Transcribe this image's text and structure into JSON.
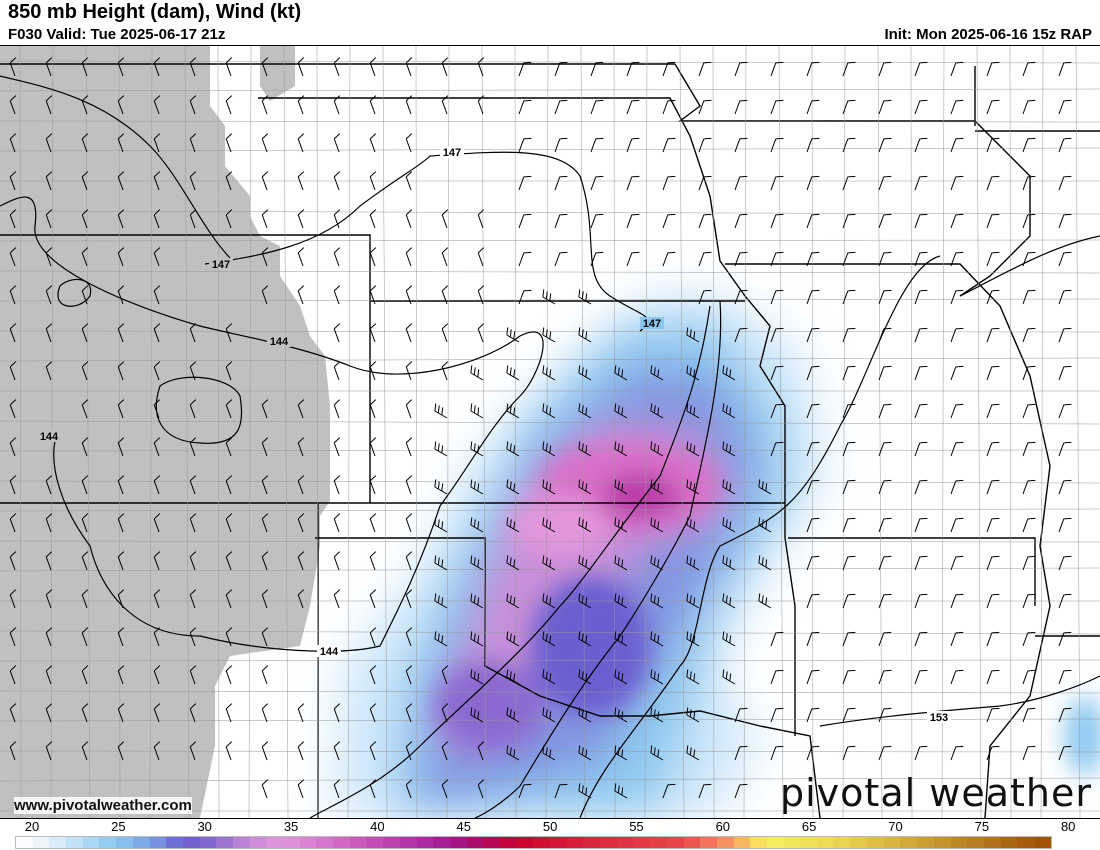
{
  "header": {
    "title": "850 mb Height (dam), Wind (kt)",
    "valid": "F030 Valid: Tue 2025-06-17 21z",
    "init": "Init: Mon 2025-06-16 15z RAP"
  },
  "map": {
    "contour_labels": [
      "147",
      "147",
      "147",
      "144",
      "144",
      "144",
      "153"
    ],
    "terrain_mask_color": "#c0c0c0",
    "boundary_color": "#000000"
  },
  "branding": {
    "website": "www.pivotalweather.com",
    "logo": "pivotal weather"
  },
  "colorbar": {
    "units": "kt",
    "min": 20,
    "max": 82,
    "tick_labels": [
      "20",
      "25",
      "30",
      "35",
      "40",
      "45",
      "50",
      "55",
      "60",
      "65",
      "70",
      "75",
      "80"
    ],
    "anchors": [
      [
        20,
        "#ffffff"
      ],
      [
        22,
        "#e6f0fb"
      ],
      [
        24,
        "#b4dcf6"
      ],
      [
        26,
        "#8ac8f0"
      ],
      [
        28,
        "#7ba0e6"
      ],
      [
        30,
        "#6a5fd0"
      ],
      [
        32,
        "#8a6ad0"
      ],
      [
        34,
        "#c88ad8"
      ],
      [
        36,
        "#e296dc"
      ],
      [
        40,
        "#d060c0"
      ],
      [
        44,
        "#b030a8"
      ],
      [
        46,
        "#a01890"
      ],
      [
        48,
        "#b00860"
      ],
      [
        50,
        "#cc0030"
      ],
      [
        55,
        "#dc2a3e"
      ],
      [
        60,
        "#e84848"
      ],
      [
        62,
        "#f58060"
      ],
      [
        64,
        "#fac860"
      ],
      [
        65,
        "#f8f060"
      ],
      [
        70,
        "#e8d050"
      ],
      [
        75,
        "#c89830"
      ],
      [
        80,
        "#a86010"
      ],
      [
        82,
        "#a05000"
      ]
    ]
  }
}
